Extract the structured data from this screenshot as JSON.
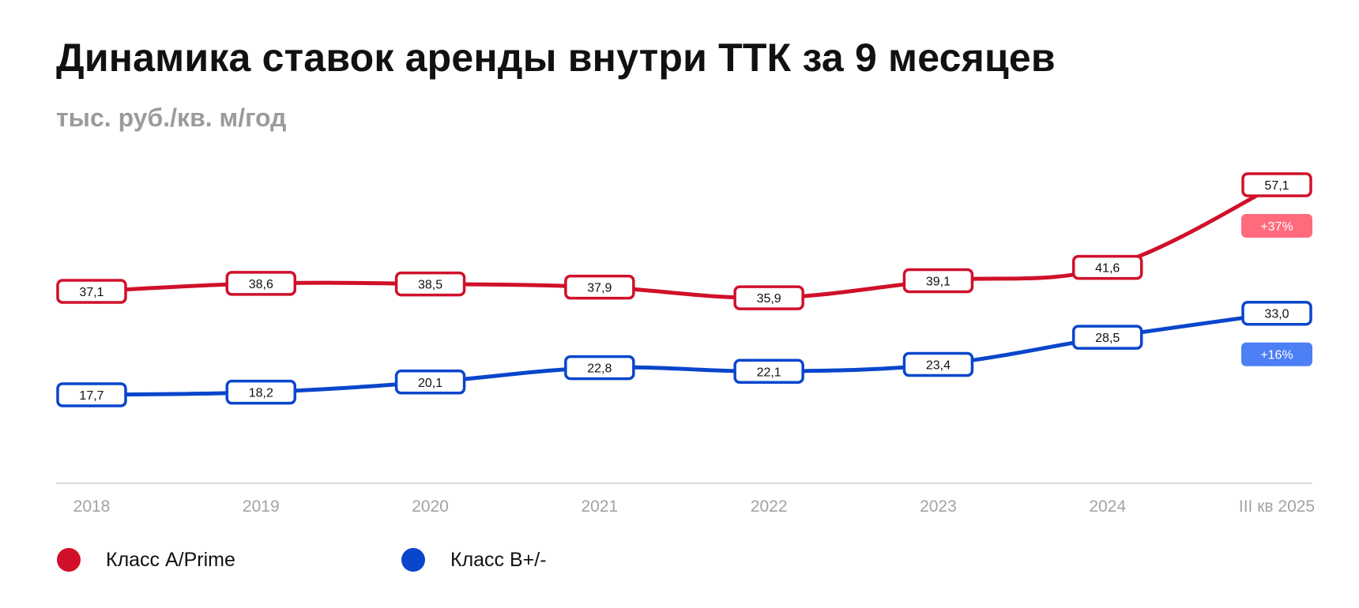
{
  "header": {
    "title": "Динамика ставок аренды внутри ТТК за 9 месяцев",
    "subtitle": "тыс. руб./кв. м/год"
  },
  "chart_data": {
    "type": "line",
    "title": "Динамика ставок аренды внутри ТТК за 9 месяцев",
    "ylabel": "тыс. руб./кв. м/год",
    "xlabel": "",
    "categories": [
      "2018",
      "2019",
      "2020",
      "2021",
      "2022",
      "2023",
      "2024",
      "III кв 2025"
    ],
    "ylim": [
      10,
      60
    ],
    "grid": false,
    "legend_position": "bottom-left",
    "series": [
      {
        "name": "Класс A/Prime",
        "color": "#d0102a",
        "values": [
          37.1,
          38.6,
          38.5,
          37.9,
          35.9,
          39.1,
          41.6,
          57.1
        ],
        "labels": [
          "37,1",
          "38,6",
          "38,5",
          "37,9",
          "35,9",
          "39,1",
          "41,6",
          "57,1"
        ],
        "change_label": "+37%",
        "change_color": "#ff6b7d"
      },
      {
        "name": "Класс B+/-",
        "color": "#0a46cc",
        "values": [
          17.7,
          18.2,
          20.1,
          22.8,
          22.1,
          23.4,
          28.5,
          33.0
        ],
        "labels": [
          "17,7",
          "18,2",
          "20,1",
          "22,8",
          "22,1",
          "23,4",
          "28,5",
          "33,0"
        ],
        "change_label": "+16%",
        "change_color": "#4d7ff5"
      }
    ]
  }
}
